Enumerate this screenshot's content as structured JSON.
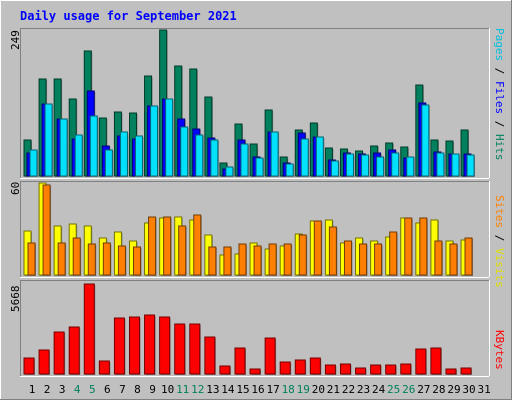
{
  "chart_data": {
    "type": "bar",
    "title": "Daily usage for September 2021",
    "categories": [
      "1",
      "2",
      "3",
      "4",
      "5",
      "6",
      "7",
      "8",
      "9",
      "10",
      "11",
      "12",
      "13",
      "14",
      "15",
      "16",
      "17",
      "18",
      "19",
      "20",
      "21",
      "22",
      "23",
      "24",
      "25",
      "26",
      "27",
      "28",
      "29",
      "30",
      "31"
    ],
    "weekend_days": [
      "4",
      "5",
      "11",
      "12",
      "18",
      "19",
      "25",
      "26"
    ],
    "panels": [
      {
        "id": "hits",
        "max_label": "249",
        "ymax": 249,
        "series": [
          {
            "name": "Hits",
            "color": "#00805c",
            "values": [
              61,
              165,
              166,
              131,
              214,
              99,
              110,
              107,
              170,
              249,
              187,
              183,
              134,
              22,
              88,
              55,
              112,
              32,
              79,
              90,
              48,
              46,
              42,
              51,
              57,
              49,
              155,
              61,
              60,
              78,
              0
            ]
          },
          {
            "name": "Files",
            "color": "#0000ff",
            "values": [
              40,
              123,
              98,
              63,
              145,
              51,
              68,
              63,
              120,
              132,
              98,
              81,
              65,
              12,
              62,
              32,
              75,
              22,
              73,
              66,
              28,
              40,
              37,
              40,
              44,
              30,
              124,
              41,
              38,
              38,
              0
            ]
          },
          {
            "name": "Pages",
            "color": "#00e0ff",
            "values": [
              44,
              123,
              98,
              70,
              102,
              45,
              75,
              68,
              120,
              132,
              83,
              70,
              62,
              15,
              55,
              30,
              75,
              20,
              63,
              66,
              25,
              38,
              35,
              33,
              40,
              32,
              121,
              40,
              38,
              36,
              0
            ]
          }
        ],
        "side_legend": [
          {
            "text": "Pages",
            "color": "#00c0e0"
          },
          {
            "text": " / ",
            "color": "#000000"
          },
          {
            "text": "Files",
            "color": "#0000ff"
          },
          {
            "text": " / ",
            "color": "#000000"
          },
          {
            "text": "Hits",
            "color": "#00805c"
          }
        ]
      },
      {
        "id": "visits",
        "max_label": "60",
        "ymax": 60,
        "series": [
          {
            "name": "Visits",
            "color": "#ffff00",
            "values": [
              29,
              60,
              32,
              33,
              32,
              24,
              28,
              22,
              34,
              37,
              38,
              36,
              26,
              13,
              14,
              21,
              17,
              19,
              27,
              35,
              36,
              21,
              24,
              22,
              25,
              37,
              34,
              36,
              22,
              23,
              0
            ]
          },
          {
            "name": "Sites",
            "color": "#ff8000",
            "values": [
              21,
              59,
              21,
              24,
              20,
              21,
              19,
              18,
              38,
              38,
              32,
              39,
              18,
              18,
              20,
              19,
              20,
              20,
              26,
              35,
              31,
              22,
              20,
              20,
              28,
              37,
              37,
              22,
              20,
              24,
              0
            ]
          }
        ],
        "side_legend": [
          {
            "text": "Sites",
            "color": "#ff8000"
          },
          {
            "text": " / ",
            "color": "#000000"
          },
          {
            "text": "Visits",
            "color": "#e0e000"
          }
        ]
      },
      {
        "id": "kbytes",
        "max_label": "5668",
        "ymax": 5668,
        "series": [
          {
            "name": "KBytes",
            "color": "#ff0000",
            "values": [
              1000,
              1497,
              2630,
              2943,
              5668,
              844,
              3546,
              3584,
              3710,
              3575,
              3176,
              3168,
              2346,
              524,
              1608,
              299,
              2296,
              759,
              912,
              1003,
              591,
              658,
              362,
              538,
              568,
              600,
              1556,
              1657,
              335,
              406,
              0
            ]
          }
        ],
        "side_legend": [
          {
            "text": "KBytes",
            "color": "#ff0000"
          }
        ]
      }
    ]
  }
}
